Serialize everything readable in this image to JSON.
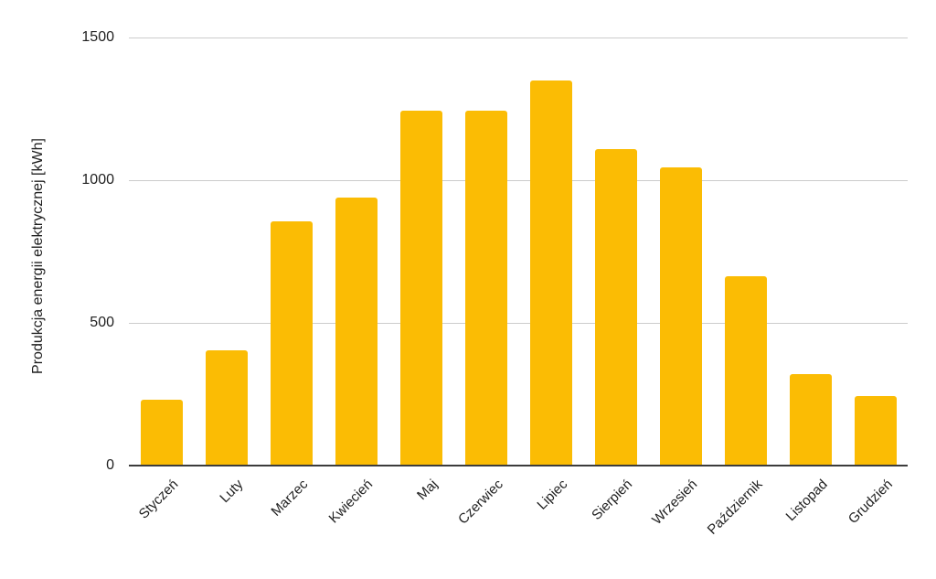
{
  "chart_data": {
    "type": "bar",
    "title": "",
    "xlabel": "",
    "ylabel": "Produkcja energii elektrycznej [kWh]",
    "categories": [
      "Styczeń",
      "Luty",
      "Marzec",
      "Kwiecień",
      "Maj",
      "Czerwiec",
      "Lipiec",
      "Sierpień",
      "Wrzesień",
      "Październik",
      "Listopad",
      "Grudzień"
    ],
    "values": [
      230,
      405,
      855,
      940,
      1245,
      1245,
      1350,
      1110,
      1045,
      665,
      320,
      245
    ],
    "ylim": [
      0,
      1500
    ],
    "yticks": [
      0,
      500,
      1000,
      1500
    ],
    "grid": true,
    "legend_position": "none",
    "colors": {
      "bar": "#FBBC04",
      "gridline": "#cccccc",
      "baseline": "#3c3c3c",
      "text": "#1f1f1f",
      "background": "#ffffff"
    }
  }
}
